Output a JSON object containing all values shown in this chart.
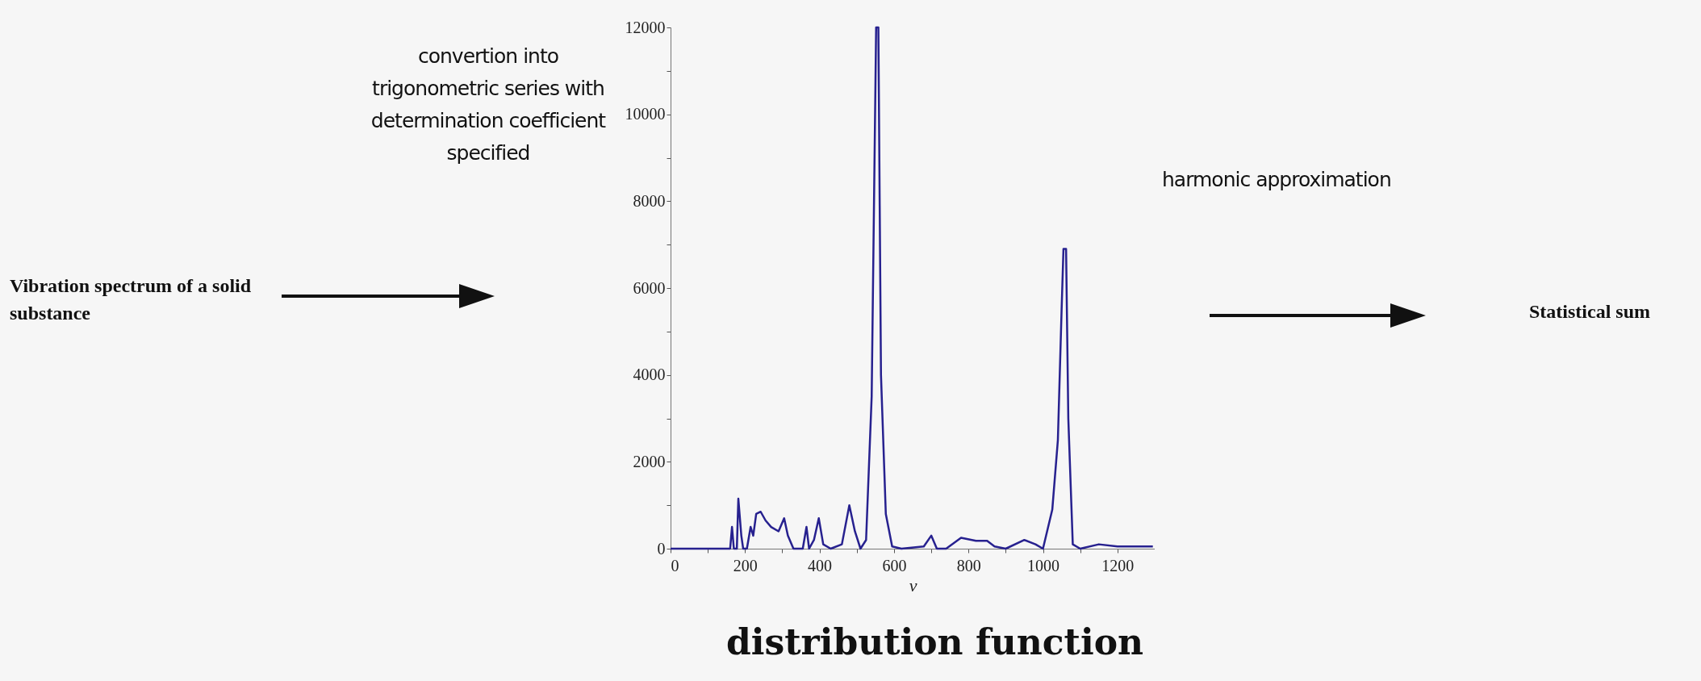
{
  "chart_data": {
    "type": "line",
    "xlabel": "ν",
    "annotations": [
      "convertion into trigonometric series with determination coefficient specified",
      "Vibration spectrum of a solid substance",
      "harmonic approximation",
      "Statistical sum",
      "distribution function"
    ],
    "xlim": [
      0,
      1300
    ],
    "ylim": [
      0,
      12000
    ],
    "xticks": [
      0,
      {
        "value": 100,
        "label": null
      },
      200,
      {
        "value": 300,
        "label": null
      },
      400,
      {
        "value": 500,
        "label": null
      },
      600,
      {
        "value": 700,
        "label": null
      },
      800,
      {
        "value": 900,
        "label": null
      },
      1000,
      {
        "value": 1100,
        "label": null
      },
      1200
    ],
    "yticks": [
      0,
      {
        "value": 1000,
        "label": null
      },
      2000,
      {
        "value": 3000,
        "label": null
      },
      4000,
      {
        "value": 5000,
        "label": null
      },
      6000,
      {
        "value": 7000,
        "label": null
      },
      8000,
      {
        "value": 9000,
        "label": null
      },
      10000,
      {
        "value": 11000,
        "label": null
      },
      12000
    ],
    "grid": false,
    "series": [
      {
        "color": "#27218f",
        "x": [
          0,
          160,
          165,
          170,
          178,
          182,
          190,
          195,
          205,
          215,
          222,
          230,
          242,
          255,
          270,
          290,
          305,
          315,
          330,
          355,
          365,
          372,
          385,
          398,
          410,
          430,
          460,
          480,
          495,
          510,
          525,
          540,
          552,
          558,
          565,
          578,
          595,
          620,
          680,
          700,
          715,
          740,
          780,
          820,
          850,
          870,
          900,
          950,
          980,
          1000,
          1025,
          1040,
          1050,
          1055,
          1062,
          1068,
          1080,
          1100,
          1150,
          1200,
          1250,
          1295
        ],
        "values": [
          0,
          0,
          500,
          0,
          0,
          1150,
          300,
          0,
          0,
          500,
          300,
          800,
          850,
          650,
          500,
          400,
          700,
          300,
          0,
          0,
          500,
          0,
          200,
          700,
          100,
          0,
          100,
          1000,
          400,
          0,
          200,
          3500,
          12000,
          12000,
          4000,
          800,
          50,
          0,
          50,
          300,
          0,
          0,
          250,
          180,
          180,
          50,
          0,
          200,
          100,
          0,
          900,
          2500,
          5500,
          6900,
          6900,
          3000,
          100,
          0,
          100,
          50,
          50,
          50
        ]
      }
    ]
  }
}
